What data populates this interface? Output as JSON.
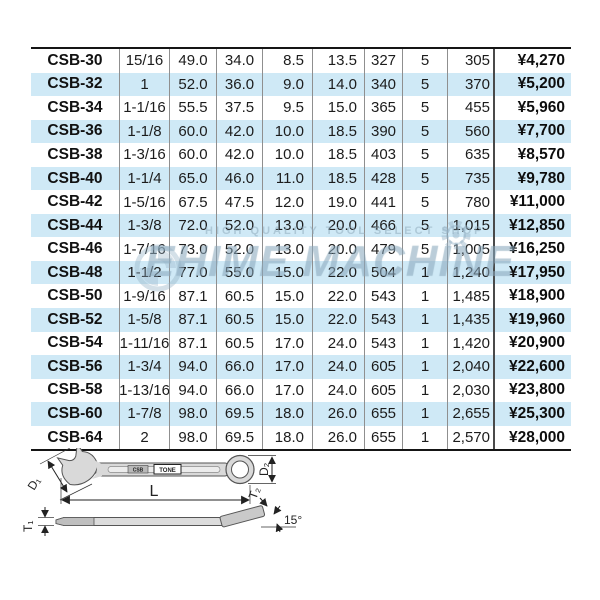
{
  "table": {
    "rows": [
      [
        "CSB-30",
        "15/16",
        "49.0",
        "34.0",
        "8.5",
        "13.5",
        "327",
        "5",
        "305",
        "¥4,270"
      ],
      [
        "CSB-32",
        "1",
        "52.0",
        "36.0",
        "9.0",
        "14.0",
        "340",
        "5",
        "370",
        "¥5,200"
      ],
      [
        "CSB-34",
        "1-1/16",
        "55.5",
        "37.5",
        "9.5",
        "15.0",
        "365",
        "5",
        "455",
        "¥5,960"
      ],
      [
        "CSB-36",
        "1-1/8",
        "60.0",
        "42.0",
        "10.0",
        "18.5",
        "390",
        "5",
        "560",
        "¥7,700"
      ],
      [
        "CSB-38",
        "1-3/16",
        "60.0",
        "42.0",
        "10.0",
        "18.5",
        "403",
        "5",
        "635",
        "¥8,570"
      ],
      [
        "CSB-40",
        "1-1/4",
        "65.0",
        "46.0",
        "11.0",
        "18.5",
        "428",
        "5",
        "735",
        "¥9,780"
      ],
      [
        "CSB-42",
        "1-5/16",
        "67.5",
        "47.5",
        "12.0",
        "19.0",
        "441",
        "5",
        "780",
        "¥11,000"
      ],
      [
        "CSB-44",
        "1-3/8",
        "72.0",
        "52.0",
        "13.0",
        "20.0",
        "466",
        "5",
        "1,015",
        "¥12,850"
      ],
      [
        "CSB-46",
        "1-7/16",
        "73.0",
        "52.0",
        "13.0",
        "20.0",
        "479",
        "5",
        "1,005",
        "¥16,250"
      ],
      [
        "CSB-48",
        "1-1/2",
        "77.0",
        "55.0",
        "15.0",
        "22.0",
        "504",
        "1",
        "1,240",
        "¥17,950"
      ],
      [
        "CSB-50",
        "1-9/16",
        "87.1",
        "60.5",
        "15.0",
        "22.0",
        "543",
        "1",
        "1,485",
        "¥18,900"
      ],
      [
        "CSB-52",
        "1-5/8",
        "87.1",
        "60.5",
        "15.0",
        "22.0",
        "543",
        "1",
        "1,435",
        "¥19,960"
      ],
      [
        "CSB-54",
        "1-11/16",
        "87.1",
        "60.5",
        "17.0",
        "24.0",
        "543",
        "1",
        "1,420",
        "¥20,900"
      ],
      [
        "CSB-56",
        "1-3/4",
        "94.0",
        "66.0",
        "17.0",
        "24.0",
        "605",
        "1",
        "2,040",
        "¥22,600"
      ],
      [
        "CSB-58",
        "1-13/16",
        "94.0",
        "66.0",
        "17.0",
        "24.0",
        "605",
        "1",
        "2,030",
        "¥23,800"
      ],
      [
        "CSB-60",
        "1-7/8",
        "98.0",
        "69.5",
        "18.0",
        "26.0",
        "655",
        "1",
        "2,655",
        "¥25,300"
      ],
      [
        "CSB-64",
        "2",
        "98.0",
        "69.5",
        "18.0",
        "26.0",
        "655",
        "1",
        "2,570",
        "¥28,000"
      ]
    ]
  },
  "watermark": {
    "line1": "HIGH QUALITY TOOL SELECT SHOP",
    "line2": "EHIME MACHINE"
  },
  "diagram": {
    "labels": {
      "d1": "D₁",
      "d2": "D₂",
      "l": "L",
      "t1": "T₁",
      "t2": "T₂",
      "angle": "15°",
      "model_stamp": "CSB",
      "brand_stamp": "TONE"
    }
  },
  "colors": {
    "row_alt": "#cfe9f6",
    "table_border": "#151515",
    "grid_line": "#8f8f8f",
    "watermark": "#94b2c5"
  }
}
